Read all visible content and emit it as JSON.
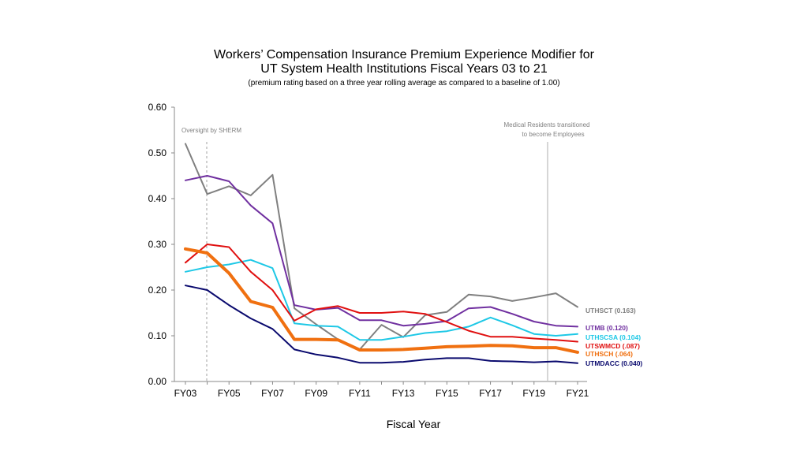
{
  "chart_data": {
    "type": "line",
    "title_line1": "Workers’ Compensation Insurance Premium Experience Modifier for",
    "title_line2": "UT System Health Institutions Fiscal Years 03 to 21",
    "subtitle": "(premium rating based on a three year rolling average as compared to a baseline of 1.00)",
    "xlabel": "Fiscal Year",
    "ylabel": "",
    "ylim": [
      0,
      0.6
    ],
    "yticks": [
      "0.00",
      "0.10",
      "0.20",
      "0.30",
      "0.40",
      "0.50",
      "0.60"
    ],
    "x": [
      "FY03",
      "FY04",
      "FY05",
      "FY06",
      "FY07",
      "FY08",
      "FY09",
      "FY10",
      "FY11",
      "FY12",
      "FY13",
      "FY14",
      "FY15",
      "FY16",
      "FY17",
      "FY18",
      "FY19",
      "FY20",
      "FY21"
    ],
    "xtick_labels": [
      "FY03",
      "FY05",
      "FY07",
      "FY09",
      "FY11",
      "FY13",
      "FY15",
      "FY17",
      "FY19",
      "FY21"
    ],
    "annotations": {
      "oversight": "Oversight by  SHERM",
      "residents_line1": "Medical Residents transitioned",
      "residents_line2": "to become Employees"
    },
    "series": [
      {
        "name": "UTHSCT",
        "label": "UTHSCT (0.163)",
        "color": "#808080",
        "width": 2,
        "values": [
          0.52,
          0.41,
          0.427,
          0.407,
          0.452,
          0.16,
          0.125,
          0.092,
          0.07,
          0.124,
          0.097,
          0.145,
          0.152,
          0.19,
          0.186,
          0.176,
          0.184,
          0.193,
          0.163
        ]
      },
      {
        "name": "UTMB",
        "label": "UTMB (0.120)",
        "color": "#7030A0",
        "width": 2,
        "values": [
          0.44,
          0.45,
          0.438,
          0.385,
          0.346,
          0.167,
          0.157,
          0.161,
          0.134,
          0.134,
          0.122,
          0.126,
          0.132,
          0.16,
          0.163,
          0.148,
          0.131,
          0.122,
          0.12
        ]
      },
      {
        "name": "UTHSCSA",
        "label": "UTHSCSA (0.104)",
        "color": "#1EC8E6",
        "width": 2,
        "values": [
          0.24,
          0.25,
          0.256,
          0.266,
          0.248,
          0.127,
          0.122,
          0.12,
          0.091,
          0.091,
          0.098,
          0.106,
          0.11,
          0.12,
          0.14,
          0.123,
          0.104,
          0.1,
          0.104
        ]
      },
      {
        "name": "UTSWMCD",
        "label": "UTSWMCD (.087)",
        "color": "#E01010",
        "width": 2,
        "values": [
          0.26,
          0.3,
          0.294,
          0.24,
          0.2,
          0.133,
          0.158,
          0.165,
          0.15,
          0.15,
          0.153,
          0.148,
          0.13,
          0.111,
          0.098,
          0.098,
          0.094,
          0.091,
          0.087
        ]
      },
      {
        "name": "UTHSCH",
        "label": "UTHSCH (.064)",
        "color": "#F07010",
        "width": 4,
        "values": [
          0.29,
          0.281,
          0.237,
          0.175,
          0.162,
          0.092,
          0.092,
          0.091,
          0.069,
          0.069,
          0.07,
          0.073,
          0.076,
          0.077,
          0.079,
          0.078,
          0.074,
          0.074,
          0.064
        ]
      },
      {
        "name": "UTMDACC",
        "label": "UTMDACC (0.040)",
        "color": "#0A0A6E",
        "width": 2,
        "values": [
          0.21,
          0.2,
          0.167,
          0.138,
          0.115,
          0.07,
          0.059,
          0.052,
          0.041,
          0.041,
          0.043,
          0.048,
          0.051,
          0.051,
          0.045,
          0.044,
          0.042,
          0.044,
          0.04
        ]
      }
    ]
  }
}
